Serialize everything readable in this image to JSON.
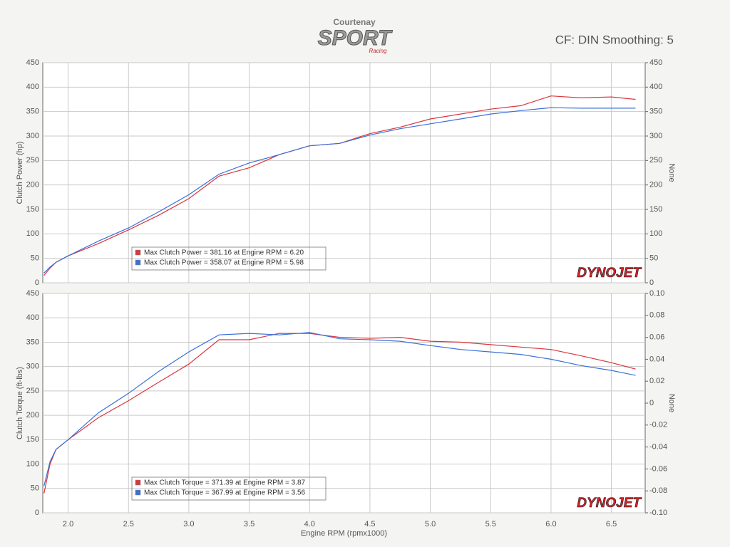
{
  "header": {
    "logo_top": "Courtenay",
    "logo_main": "SPORT",
    "logo_sub": "Racing",
    "settings": "CF: DIN Smoothing: 5"
  },
  "chart_data": [
    {
      "type": "line",
      "ylabel": "Clutch Power (hp)",
      "y2label": "None",
      "watermark": "DYNOJET",
      "x": [
        1.8,
        1.85,
        1.9,
        2.0,
        2.25,
        2.5,
        2.75,
        3.0,
        3.25,
        3.5,
        3.75,
        4.0,
        4.25,
        4.5,
        4.75,
        5.0,
        5.25,
        5.5,
        5.75,
        6.0,
        6.25,
        6.5,
        6.7
      ],
      "series": [
        {
          "name": "Max Clutch Power = 381.16 at Engine RPM = 6.20",
          "color": "#d9363e",
          "values": [
            15,
            30,
            42,
            55,
            80,
            108,
            138,
            172,
            218,
            235,
            262,
            280,
            285,
            305,
            318,
            335,
            345,
            355,
            362,
            382,
            378,
            380,
            375
          ]
        },
        {
          "name": "Max Clutch Power = 358.07 at Engine RPM = 5.98",
          "color": "#3a6fd8",
          "values": [
            20,
            32,
            42,
            55,
            85,
            112,
            145,
            180,
            222,
            245,
            262,
            280,
            285,
            302,
            315,
            325,
            335,
            345,
            352,
            358,
            357,
            357,
            357
          ]
        }
      ],
      "xlim": [
        1.79,
        6.78
      ],
      "xticks": [
        2,
        2.5,
        3,
        3.5,
        4,
        4.5,
        5,
        5.5,
        6,
        6.5
      ],
      "ylim": [
        0,
        450
      ],
      "yticks": [
        0,
        50,
        100,
        150,
        200,
        250,
        300,
        350,
        400,
        450
      ],
      "y2lim": [
        0,
        450
      ],
      "y2ticks": [
        0,
        50,
        100,
        150,
        200,
        250,
        300,
        350,
        400,
        450
      ],
      "grid": true
    },
    {
      "type": "line",
      "ylabel": "Clutch Torque (ft-lbs)",
      "y2label": "None",
      "xlabel": "Engine RPM (rpmx1000)",
      "watermark": "DYNOJET",
      "x": [
        1.8,
        1.85,
        1.9,
        2.0,
        2.25,
        2.5,
        2.75,
        3.0,
        3.25,
        3.5,
        3.75,
        4.0,
        4.25,
        4.5,
        4.75,
        5.0,
        5.25,
        5.5,
        5.75,
        6.0,
        6.25,
        6.5,
        6.7
      ],
      "series": [
        {
          "name": "Max Clutch Torque = 371.39 at Engine RPM = 3.87",
          "color": "#d9363e",
          "values": [
            40,
            100,
            130,
            150,
            195,
            230,
            268,
            305,
            355,
            355,
            368,
            368,
            360,
            358,
            360,
            352,
            350,
            345,
            340,
            335,
            322,
            308,
            295
          ]
        },
        {
          "name": "Max Clutch Torque = 367.99 at Engine RPM = 3.56",
          "color": "#3a6fd8",
          "values": [
            55,
            105,
            130,
            150,
            205,
            245,
            290,
            330,
            365,
            368,
            365,
            370,
            357,
            355,
            352,
            343,
            335,
            330,
            325,
            315,
            302,
            292,
            282
          ]
        }
      ],
      "xlim": [
        1.79,
        6.78
      ],
      "xticks": [
        {
          "value": 2,
          "label": "2.0"
        },
        2.5,
        {
          "value": 3,
          "label": "3.0"
        },
        3.5,
        {
          "value": 4,
          "label": "4.0"
        },
        4.5,
        {
          "value": 5,
          "label": "5.0"
        },
        5.5,
        {
          "value": 6,
          "label": "6.0"
        },
        6.5
      ],
      "ylim": [
        0,
        450
      ],
      "yticks": [
        0,
        50,
        100,
        150,
        200,
        250,
        300,
        350,
        400,
        450
      ],
      "y2lim": [
        -0.1,
        0.1
      ],
      "y2ticks": [
        {
          "value": -0.1,
          "label": "-0.10"
        },
        -0.08,
        -0.06,
        -0.04,
        -0.02,
        0,
        0.02,
        0.04,
        0.06,
        0.08,
        {
          "value": 0.1,
          "label": "0.10"
        }
      ],
      "grid": true
    }
  ]
}
